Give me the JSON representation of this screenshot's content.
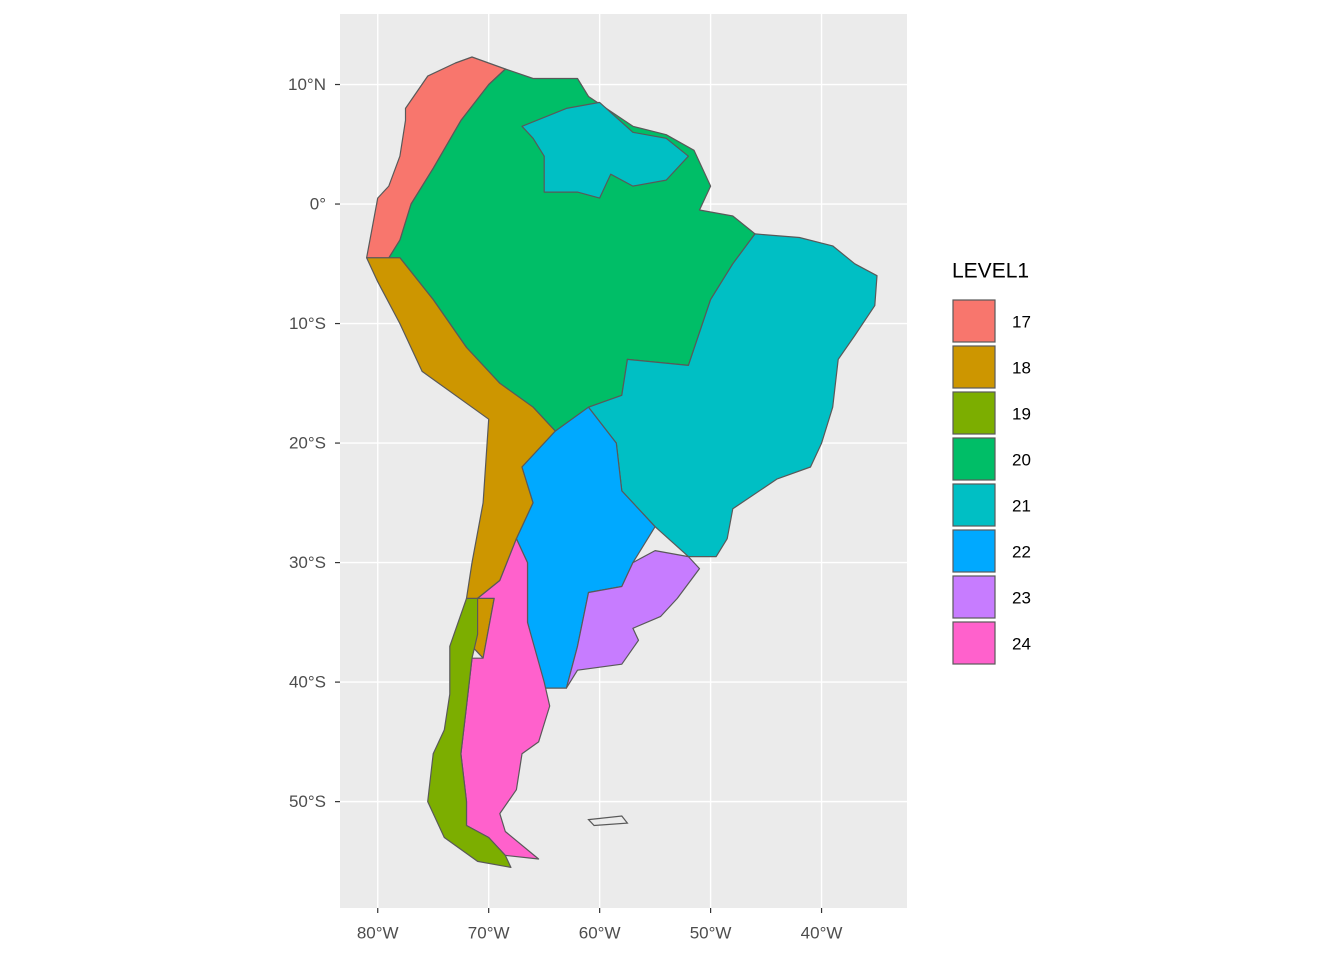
{
  "chart_data": {
    "type": "map",
    "xlim": [
      -83.4,
      -32.3
    ],
    "ylim": [
      -58.9,
      15.9
    ],
    "xticks": [
      {
        "value": -80,
        "label": "80°W"
      },
      {
        "value": -70,
        "label": "70°W"
      },
      {
        "value": -60,
        "label": "60°W"
      },
      {
        "value": -50,
        "label": "50°W"
      },
      {
        "value": -40,
        "label": "40°W"
      }
    ],
    "yticks": [
      {
        "value": 10,
        "label": "10°N"
      },
      {
        "value": 0,
        "label": "0°"
      },
      {
        "value": -10,
        "label": "10°S"
      },
      {
        "value": -20,
        "label": "20°S"
      },
      {
        "value": -30,
        "label": "30°S"
      },
      {
        "value": -40,
        "label": "40°S"
      },
      {
        "value": -50,
        "label": "50°S"
      }
    ],
    "grid": true,
    "legend_title": "LEVEL1",
    "categories": [
      "17",
      "18",
      "19",
      "20",
      "21",
      "22",
      "23",
      "24"
    ],
    "colors": [
      "#F8766D",
      "#CD9600",
      "#7CAE00",
      "#00BE67",
      "#00BFC4",
      "#00A9FF",
      "#C77CFF",
      "#FF61CC"
    ]
  }
}
